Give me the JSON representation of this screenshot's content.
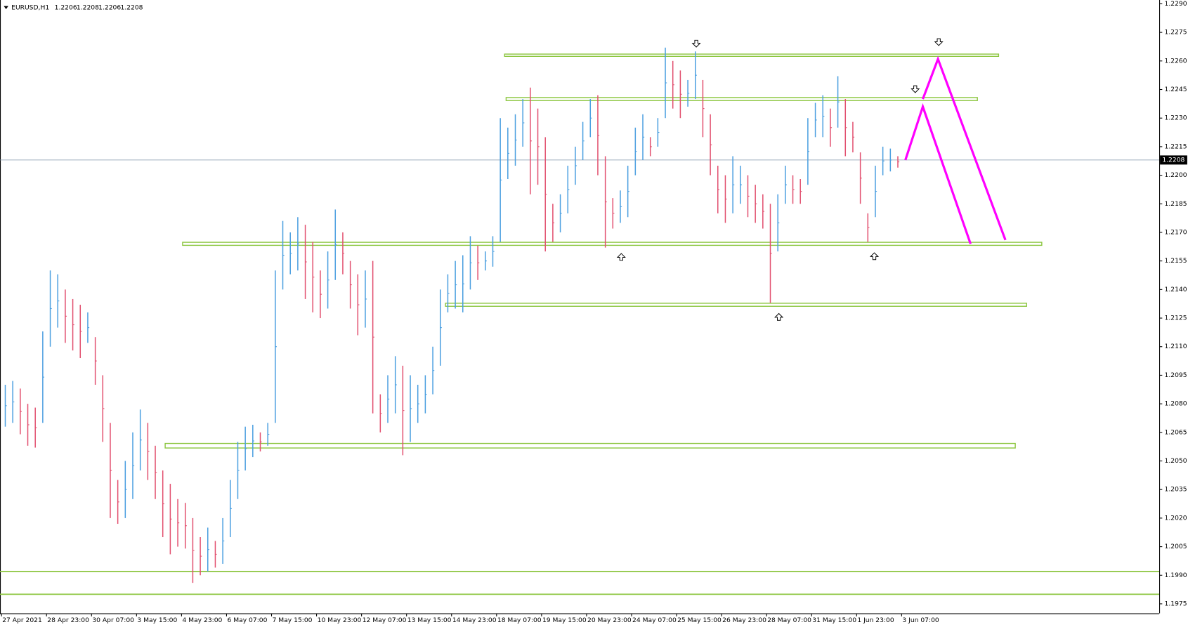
{
  "chart_data": {
    "type": "hilo_bars",
    "symbol": "EURUSD,H1",
    "quote": [
      1.2206,
      1.2208,
      1.2206,
      1.2208
    ],
    "categories": [
      "27 Apr 2021",
      "28 Apr 23:00",
      "30 Apr 07:00",
      "3 May 15:00",
      "4 May 23:00",
      "6 May 07:00",
      "7 May 15:00",
      "10 May 23:00",
      "12 May 07:00",
      "13 May 15:00",
      "14 May 23:00",
      "18 May 07:00",
      "19 May 15:00",
      "20 May 23:00",
      "24 May 07:00",
      "25 May 15:00",
      "26 May 23:00",
      "28 May 07:00",
      "31 May 15:00",
      "1 Jun 23:00",
      "3 Jun 07:00"
    ],
    "highs": [
      1.209,
      1.2092,
      1.2088,
      1.208,
      1.2078,
      1.2118,
      1.215,
      1.2148,
      1.214,
      1.2135,
      1.2132,
      1.2128,
      1.2115,
      1.2095,
      1.207,
      1.204,
      1.205,
      1.2065,
      1.2077,
      1.207,
      1.2058,
      1.2045,
      1.2038,
      1.203,
      1.2028,
      1.202,
      1.201,
      1.2015,
      1.2008,
      1.202,
      1.204,
      1.206,
      1.2068,
      1.2069,
      1.2065,
      1.207,
      1.215,
      1.2176,
      1.217,
      1.2178,
      1.2174,
      1.2165,
      1.215,
      1.216,
      1.2182,
      1.217,
      1.2155,
      1.2148,
      1.215,
      1.2155,
      1.2085,
      1.2095,
      1.2105,
      1.21,
      1.2095,
      1.209,
      1.2095,
      1.211,
      1.214,
      1.2148,
      1.2155,
      1.2158,
      1.2168,
      1.2163,
      1.216,
      1.2168,
      1.223,
      1.2225,
      1.2232,
      1.224,
      1.2246,
      1.2235,
      1.222,
      1.2185,
      1.219,
      1.2205,
      1.2215,
      1.2228,
      1.224,
      1.2242,
      1.221,
      1.2188,
      1.2192,
      1.2205,
      1.2225,
      1.2232,
      1.222,
      1.223,
      1.2267,
      1.226,
      1.2255,
      1.225,
      1.2265,
      1.225,
      1.2232,
      1.2205,
      1.22,
      1.221,
      1.2205,
      1.22,
      1.2195,
      1.219,
      1.2185,
      1.219,
      1.2205,
      1.22,
      1.2198,
      1.223,
      1.2238,
      1.2242,
      1.2235,
      1.2252,
      1.224,
      1.2228,
      1.2212,
      1.218,
      1.2205,
      1.2215,
      1.2214,
      1.221
    ],
    "lows": [
      1.2068,
      1.207,
      1.2064,
      1.2058,
      1.2057,
      1.207,
      1.211,
      1.212,
      1.2112,
      1.2108,
      1.2104,
      1.2112,
      1.209,
      1.206,
      1.202,
      1.2017,
      1.202,
      1.203,
      1.2045,
      1.204,
      1.203,
      1.201,
      1.2001,
      1.2005,
      1.2004,
      1.1986,
      1.199,
      1.1992,
      1.1994,
      1.1996,
      1.201,
      1.203,
      1.2045,
      1.2052,
      1.2055,
      1.2058,
      1.207,
      1.214,
      1.2148,
      1.215,
      1.2135,
      1.2128,
      1.2125,
      1.213,
      1.2145,
      1.2148,
      1.213,
      1.2116,
      1.212,
      1.2075,
      1.2065,
      1.207,
      1.2075,
      1.2053,
      1.206,
      1.207,
      1.2075,
      1.2085,
      1.21,
      1.2128,
      1.213,
      1.2128,
      1.214,
      1.2145,
      1.215,
      1.2152,
      1.2165,
      1.2198,
      1.2205,
      1.2215,
      1.219,
      1.2195,
      1.216,
      1.2165,
      1.217,
      1.218,
      1.2195,
      1.2208,
      1.222,
      1.22,
      1.2162,
      1.2172,
      1.2175,
      1.2178,
      1.22,
      1.2208,
      1.221,
      1.2215,
      1.223,
      1.2235,
      1.223,
      1.2236,
      1.224,
      1.222,
      1.22,
      1.218,
      1.2175,
      1.218,
      1.2185,
      1.2178,
      1.2175,
      1.2172,
      1.2133,
      1.216,
      1.2185,
      1.2185,
      1.2185,
      1.2195,
      1.222,
      1.222,
      1.2215,
      1.2225,
      1.221,
      1.2212,
      1.2185,
      1.2165,
      1.2178,
      1.22,
      1.2202,
      1.2204
    ],
    "levels": [
      1.2263,
      1.224,
      1.2164,
      1.2132,
      1.2058,
      1.1992,
      1.198
    ],
    "projections": [
      [
        1.2208,
        1.2236,
        1.2164
      ],
      [
        1.224,
        1.2261,
        1.2166
      ]
    ],
    "price_line": 1.2208,
    "ylim": [
      1.197,
      1.2292
    ],
    "yticks": [
      {
        "value": 1.229,
        "label": "1.2290"
      },
      1.2275,
      {
        "value": 1.226,
        "label": "1.2260"
      },
      1.2245,
      {
        "value": 1.223,
        "label": "1.2230"
      },
      1.2215,
      {
        "value": 1.22,
        "label": "1.2200"
      },
      1.2185,
      {
        "value": 1.217,
        "label": "1.2170"
      },
      1.2155,
      {
        "value": 1.214,
        "label": "1.2140"
      },
      1.2125,
      {
        "value": 1.211,
        "label": "1.2110"
      },
      1.2095,
      {
        "value": 1.208,
        "label": "1.2080"
      },
      1.2065,
      {
        "value": 1.205,
        "label": "1.2050"
      },
      1.2035,
      {
        "value": 1.202,
        "label": "1.2020"
      },
      1.2005,
      {
        "value": 1.199,
        "label": "1.1990"
      },
      1.1975
    ]
  }
}
